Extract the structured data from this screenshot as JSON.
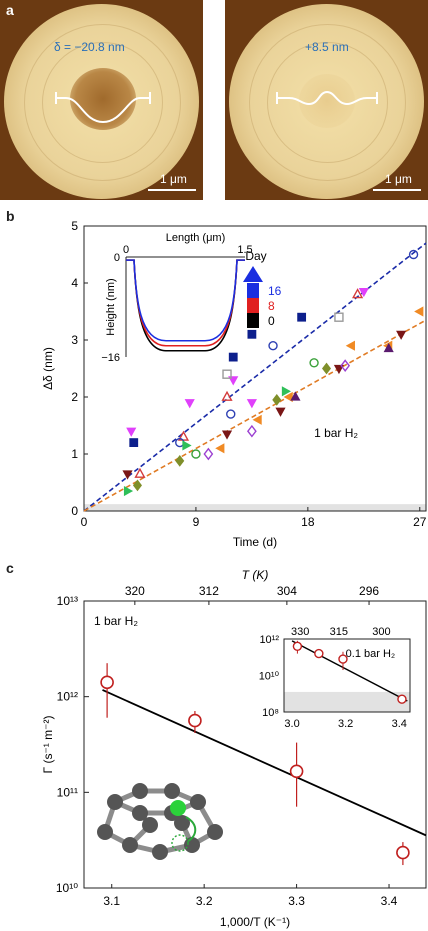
{
  "panels": {
    "a": "a",
    "b": "b",
    "c": "c"
  },
  "panel_a": {
    "left_label": "δ = −20.8 nm",
    "right_label": "+8.5 nm",
    "scale_label": "1 μm"
  },
  "chart_data": [
    {
      "id": "b",
      "type": "scatter",
      "xlabel": "Time (d)",
      "ylabel": "Δδ (nm)",
      "xlim": [
        0,
        27.5
      ],
      "ylim": [
        0,
        5
      ],
      "xticks": [
        0,
        9,
        18,
        27
      ],
      "yticks": [
        0,
        1,
        2,
        3,
        4,
        5
      ],
      "annotation": "1 bar H₂",
      "series": [
        {
          "marker": "triangle-down",
          "color": "#e040fb",
          "fill": true,
          "points": [
            [
              3.8,
              1.4
            ],
            [
              8.5,
              1.9
            ],
            [
              12.0,
              2.3
            ],
            [
              13.5,
              1.9
            ],
            [
              22.5,
              3.85
            ]
          ]
        },
        {
          "marker": "square",
          "color": "#0d1f8c",
          "fill": true,
          "points": [
            [
              4.0,
              1.2
            ],
            [
              12.0,
              2.7
            ],
            [
              17.5,
              3.4
            ],
            [
              13.5,
              3.1
            ]
          ]
        },
        {
          "marker": "triangle-up",
          "color": "#d43b3b",
          "fill": false,
          "points": [
            [
              4.5,
              0.65
            ],
            [
              8.0,
              1.3
            ],
            [
              11.5,
              2.0
            ],
            [
              22.0,
              3.8
            ]
          ]
        },
        {
          "marker": "circle",
          "color": "#2d3fb3",
          "fill": false,
          "points": [
            [
              7.7,
              1.2
            ],
            [
              11.8,
              1.7
            ],
            [
              15.2,
              2.9
            ],
            [
              26.5,
              4.5
            ]
          ]
        },
        {
          "marker": "square",
          "color": "#9a9a9a",
          "fill": false,
          "points": [
            [
              11.5,
              2.4
            ],
            [
              20.5,
              3.4
            ]
          ]
        },
        {
          "marker": "triangle-right",
          "color": "#2fbf59",
          "fill": true,
          "points": [
            [
              3.5,
              0.35
            ],
            [
              8.2,
              1.15
            ],
            [
              16.2,
              2.1
            ]
          ]
        },
        {
          "marker": "triangle-down",
          "color": "#7a1616",
          "fill": true,
          "points": [
            [
              3.5,
              0.65
            ],
            [
              11.5,
              1.35
            ],
            [
              15.8,
              1.75
            ],
            [
              20.5,
              2.5
            ],
            [
              25.5,
              3.1
            ]
          ]
        },
        {
          "marker": "diamond",
          "color": "#7f8f2a",
          "fill": true,
          "points": [
            [
              4.3,
              0.45
            ],
            [
              7.7,
              0.88
            ],
            [
              15.5,
              1.95
            ],
            [
              19.5,
              2.5
            ]
          ]
        },
        {
          "marker": "circle",
          "color": "#3aa13a",
          "fill": false,
          "points": [
            [
              9.0,
              1.0
            ],
            [
              18.5,
              2.6
            ]
          ]
        },
        {
          "marker": "diamond",
          "color": "#9b3fd1",
          "fill": false,
          "points": [
            [
              10.0,
              1.0
            ],
            [
              13.5,
              1.4
            ],
            [
              21.0,
              2.55
            ]
          ]
        },
        {
          "marker": "triangle-left",
          "color": "#f08a24",
          "fill": true,
          "points": [
            [
              11.0,
              1.1
            ],
            [
              14.0,
              1.6
            ],
            [
              16.5,
              2.0
            ],
            [
              21.5,
              2.9
            ],
            [
              24.5,
              2.9
            ],
            [
              27.0,
              3.5
            ]
          ]
        },
        {
          "marker": "triangle-up",
          "color": "#5a1a6e",
          "fill": true,
          "points": [
            [
              17.0,
              2.0
            ],
            [
              24.5,
              2.85
            ]
          ]
        }
      ],
      "fits": [
        {
          "color": "#1a2ba8",
          "x": [
            0,
            27.5
          ],
          "y": [
            0,
            4.7
          ]
        },
        {
          "color": "#e07b24",
          "x": [
            0,
            27.5
          ],
          "y": [
            0,
            3.35
          ]
        }
      ],
      "inset": {
        "xlabel": "Length (μm)",
        "ylabel": "Height (nm)",
        "xticks": [
          "0",
          "1.5"
        ],
        "yticks": [
          "0",
          "−16"
        ],
        "legend_title": "Day",
        "legend": [
          {
            "label": "16",
            "color": "#1a2ee0"
          },
          {
            "label": "8",
            "color": "#e02020"
          },
          {
            "label": "0",
            "color": "#000000"
          }
        ],
        "profiles": [
          {
            "color": "#000000",
            "depth": 15.0
          },
          {
            "color": "#e02020",
            "depth": 14.2
          },
          {
            "color": "#1a2ee0",
            "depth": 13.4
          }
        ]
      }
    },
    {
      "id": "c",
      "type": "scatter",
      "xlabel": "1,000/T (K⁻¹)",
      "ylabel": "Γ (s⁻¹ m⁻²)",
      "top_label": "T (K)",
      "y_scale": "log",
      "xlim": [
        3.07,
        3.44
      ],
      "ylim_exp": [
        10,
        13
      ],
      "xticks": [
        "3.1",
        "3.2",
        "3.3",
        "3.4"
      ],
      "yticks": [
        "10¹⁰",
        "10¹¹",
        "10¹²",
        "10¹³"
      ],
      "top_ticks": [
        "320",
        "312",
        "304",
        "296"
      ],
      "annotation": "1 bar H₂",
      "points": [
        {
          "x": 3.095,
          "y_exp": 12.15,
          "err_hi": 12.35,
          "err_lo": 11.78
        },
        {
          "x": 3.19,
          "y_exp": 11.75,
          "err_hi": 11.85,
          "err_lo": 11.62
        },
        {
          "x": 3.3,
          "y_exp": 11.22,
          "err_hi": 11.52,
          "err_lo": 10.85
        },
        {
          "x": 3.415,
          "y_exp": 10.37,
          "err_hi": 10.48,
          "err_lo": 10.24
        }
      ],
      "fit": {
        "x": [
          3.09,
          3.44
        ],
        "y_exp": [
          12.07,
          10.55
        ]
      },
      "inset": {
        "annotation": "0.1 bar H₂",
        "xticks": [
          "3.0",
          "3.2",
          "3.4"
        ],
        "yticks": [
          "10⁸",
          "10¹⁰",
          "10¹²"
        ],
        "top_ticks": [
          "330",
          "315",
          "300"
        ],
        "points": [
          {
            "x": 3.02,
            "y_exp": 11.6,
            "err_hi": 11.9,
            "err_lo": 11.2
          },
          {
            "x": 3.1,
            "y_exp": 11.2
          },
          {
            "x": 3.19,
            "y_exp": 10.9,
            "err_hi": 11.3,
            "err_lo": 10.3
          },
          {
            "x": 3.41,
            "y_exp": 8.7
          }
        ],
        "fit": {
          "x": [
            3.0,
            3.43
          ],
          "y_exp": [
            11.9,
            8.6
          ]
        }
      }
    }
  ]
}
